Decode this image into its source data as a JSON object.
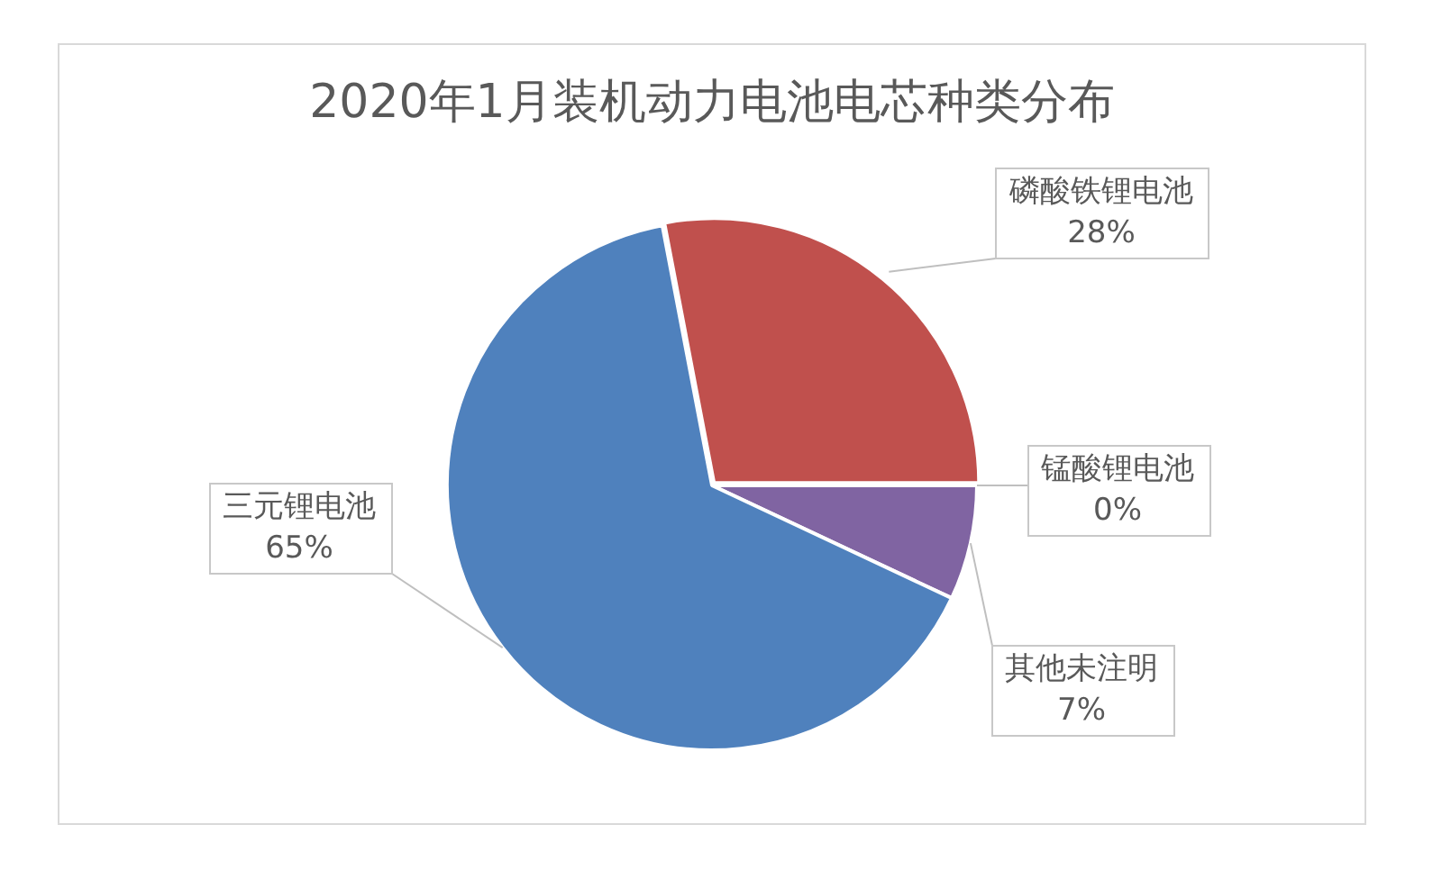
{
  "chart_data": {
    "type": "pie",
    "title": "2020年1月装机动力电池电芯种类分布",
    "categories": [
      "磷酸铁锂电池",
      "锰酸锂电池",
      "其他未注明",
      "三元锂电池"
    ],
    "values": [
      28,
      0,
      7,
      65
    ],
    "colors": [
      "#c0504d",
      "#9bbb59",
      "#8064a2",
      "#4f81bd"
    ],
    "value_labels": [
      "28%",
      "0%",
      "7%",
      "65%"
    ]
  }
}
